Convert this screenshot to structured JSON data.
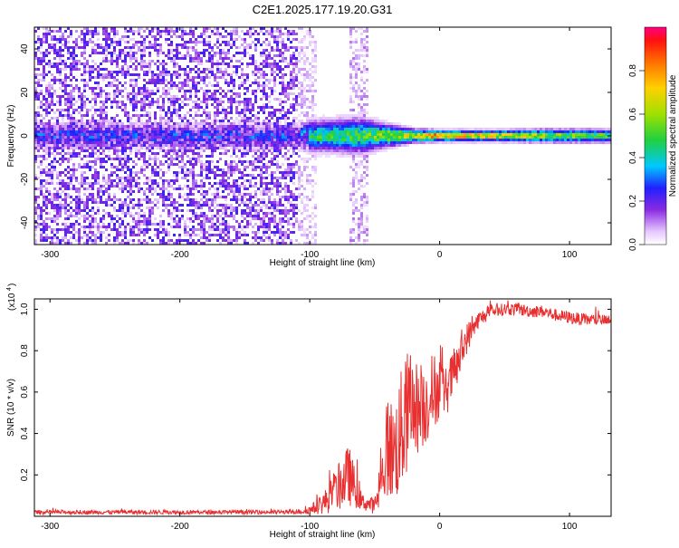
{
  "title": "C2E1.2025.177.19.20.G31",
  "chart_data": [
    {
      "type": "heatmap",
      "xlabel": "Height of straight line (km)",
      "ylabel": "Frequency (Hz)",
      "xlim": [
        -312,
        132
      ],
      "ylim": [
        -50,
        50
      ],
      "xticks": [
        -300,
        -200,
        -100,
        0,
        100
      ],
      "yticks": [
        -40,
        -20,
        0,
        20,
        40
      ],
      "colorbar": {
        "label": "Normalized spectral amplitude",
        "range": [
          0,
          1
        ],
        "ticks": [
          0.0,
          0.2,
          0.4,
          0.6,
          0.8
        ]
      },
      "signal_band": {
        "center_hz": 0,
        "x": [
          -312,
          -110,
          -100,
          -60,
          -40,
          -20,
          0,
          40,
          80,
          132
        ],
        "half_width_hz": [
          6,
          6,
          7,
          8,
          5,
          3,
          2.5,
          2.5,
          3,
          3
        ],
        "peak_amplitude": [
          0.35,
          0.35,
          0.55,
          0.6,
          0.75,
          0.85,
          1.0,
          0.85,
          0.75,
          0.6
        ]
      },
      "noise_regions": [
        {
          "x_range": [
            -312,
            -110
          ],
          "level": 0.12
        },
        {
          "x_range": [
            -70,
            -55
          ],
          "level": 0.06
        }
      ],
      "grid": false
    },
    {
      "type": "line",
      "xlabel": "Height of straight line (km)",
      "ylabel": "SNR (10 * v/v)",
      "y_multiplier": "(x10",
      "y_multiplier_exp": "4",
      "xlim": [
        -312,
        132
      ],
      "ylim": [
        0,
        1.05
      ],
      "xticks": [
        -300,
        -200,
        -100,
        0,
        100
      ],
      "yticks": [
        0.2,
        0.4,
        0.6,
        0.8,
        1.0
      ],
      "series": [
        {
          "color": "#e83030",
          "x": [
            -312,
            -200,
            -110,
            -100,
            -90,
            -80,
            -70,
            -60,
            -50,
            -45,
            -40,
            -35,
            -30,
            -25,
            -20,
            -15,
            -10,
            -5,
            0,
            5,
            10,
            15,
            20,
            25,
            30,
            40,
            50,
            60,
            70,
            80,
            90,
            100,
            110,
            120,
            132
          ],
          "y": [
            0.02,
            0.02,
            0.02,
            0.03,
            0.06,
            0.12,
            0.2,
            0.07,
            0.05,
            0.15,
            0.35,
            0.3,
            0.4,
            0.5,
            0.55,
            0.5,
            0.55,
            0.6,
            0.63,
            0.6,
            0.68,
            0.75,
            0.85,
            0.9,
            0.95,
            0.99,
            1.0,
            1.0,
            0.99,
            0.99,
            0.97,
            0.96,
            0.95,
            0.95,
            0.94
          ],
          "noise_amplitude": [
            0.01,
            0.01,
            0.01,
            0.02,
            0.05,
            0.1,
            0.15,
            0.04,
            0.04,
            0.12,
            0.25,
            0.25,
            0.3,
            0.3,
            0.25,
            0.2,
            0.2,
            0.2,
            0.15,
            0.12,
            0.12,
            0.1,
            0.08,
            0.06,
            0.04,
            0.03,
            0.03,
            0.03,
            0.03,
            0.03,
            0.03,
            0.03,
            0.03,
            0.03,
            0.03
          ]
        }
      ],
      "grid": false
    }
  ]
}
